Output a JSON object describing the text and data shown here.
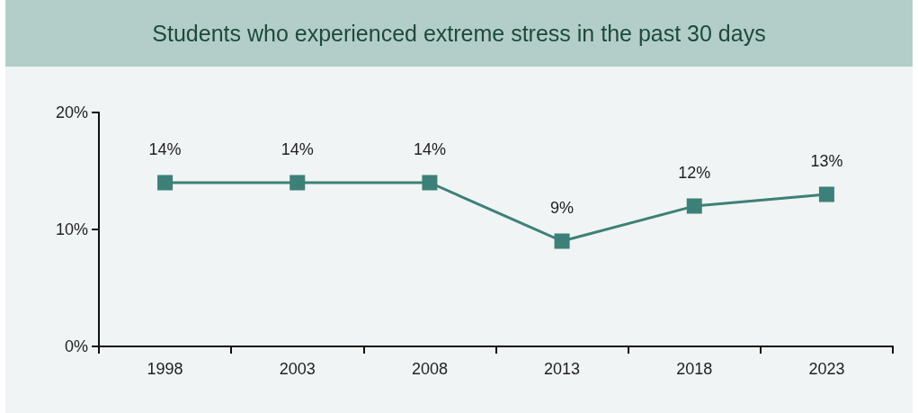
{
  "chart_data": {
    "type": "line",
    "title": "Students who experienced extreme stress in the past 30 days",
    "categories": [
      "1998",
      "2003",
      "2008",
      "2013",
      "2018",
      "2023"
    ],
    "values": [
      14,
      14,
      14,
      9,
      12,
      13
    ],
    "value_labels": [
      "14%",
      "14%",
      "14%",
      "9%",
      "12%",
      "13%"
    ],
    "color": "#3d8078",
    "marker": "square",
    "line_style": "solid",
    "ylim": [
      0,
      20
    ],
    "yticks": [
      {
        "value": 0,
        "label": "0%"
      },
      {
        "value": 10,
        "label": "10%"
      },
      {
        "value": 20,
        "label": "20%"
      }
    ],
    "grid": false
  }
}
